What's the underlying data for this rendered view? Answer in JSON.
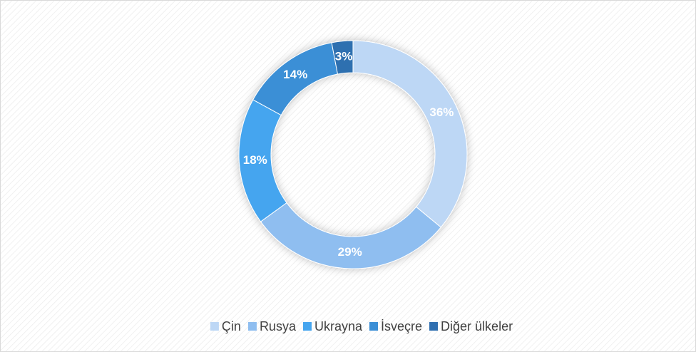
{
  "chart_data": {
    "type": "donut",
    "categories": [
      "Çin",
      "Rusya",
      "Ukrayna",
      "İsveçre",
      "Diğer ülkeler"
    ],
    "values": [
      36,
      29,
      18,
      14,
      3
    ],
    "value_labels": [
      "36%",
      "29%",
      "18%",
      "14%",
      "3%"
    ],
    "colors": [
      "#bdd7f5",
      "#8fbef0",
      "#45a5ef",
      "#3b8fd6",
      "#2f6fb0"
    ],
    "legend": "bottom"
  }
}
